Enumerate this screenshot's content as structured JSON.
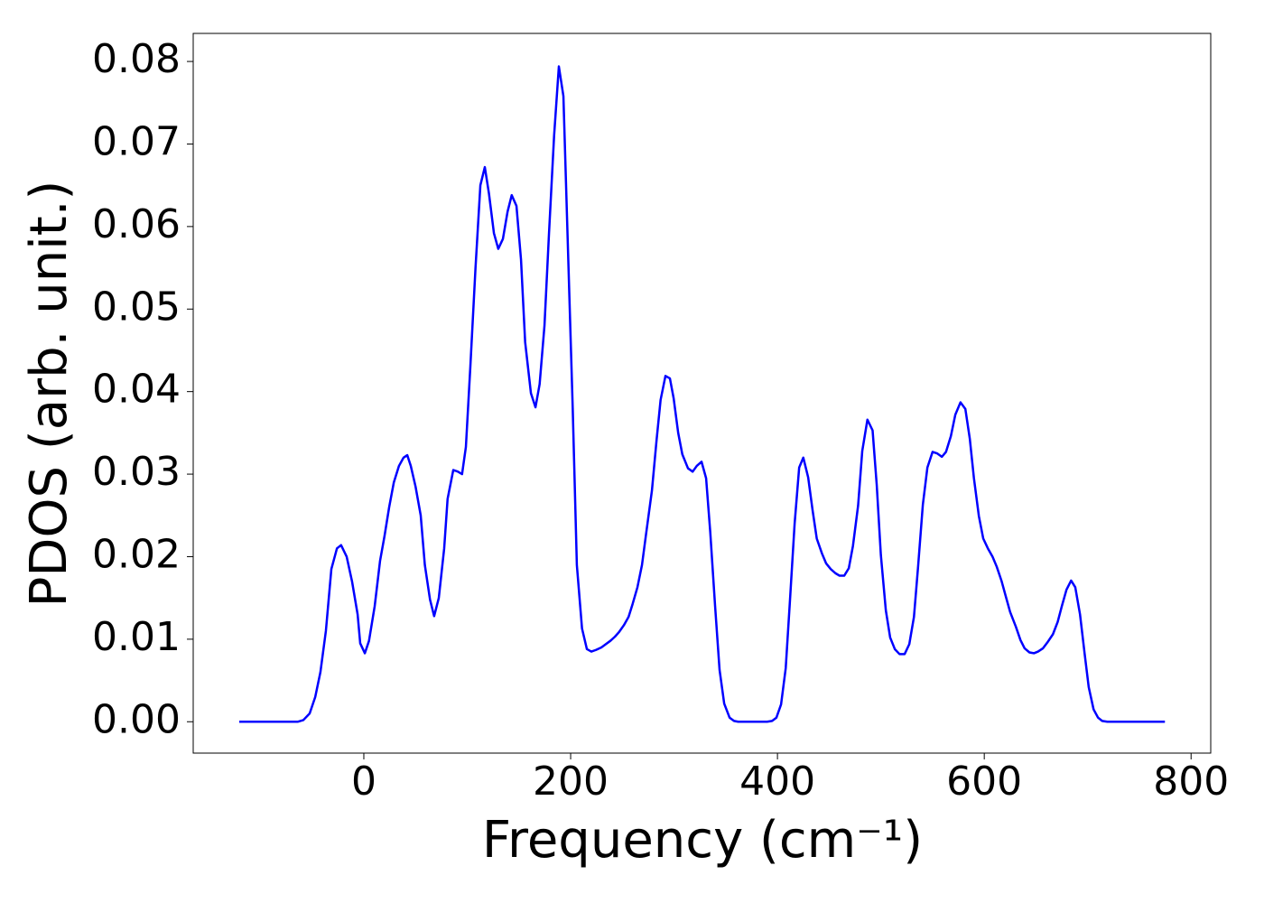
{
  "chart_data": {
    "type": "line",
    "x_label": "Frequency (cm⁻¹)",
    "y_label": "PDOS (arb. unit.)",
    "xlim": [
      -165,
      819
    ],
    "ylim": [
      -0.0038,
      0.0834
    ],
    "xticks": [
      0,
      200,
      400,
      600,
      800
    ],
    "yticks": [
      {
        "value": 0,
        "label": "0.00"
      },
      {
        "value": 0.01,
        "label": "0.01"
      },
      {
        "value": 0.02,
        "label": "0.02"
      },
      {
        "value": 0.03,
        "label": "0.03"
      },
      {
        "value": 0.04,
        "label": "0.04"
      },
      {
        "value": 0.05,
        "label": "0.05"
      },
      {
        "value": 0.06,
        "label": "0.06"
      },
      {
        "value": 0.07,
        "label": "0.07"
      },
      {
        "value": 0.08,
        "label": "0.08"
      }
    ],
    "x": [
      -120.5,
      -100,
      -80,
      -64,
      -58.5,
      -52.4,
      -47,
      -42,
      -36.7,
      -31.4,
      -26,
      -22,
      -16.6,
      -11.4,
      -6,
      -3.5,
      1,
      5,
      10.5,
      15.7,
      20,
      24.5,
      29,
      34,
      38.4,
      42,
      45.4,
      50,
      55,
      59,
      64,
      68,
      72.5,
      77.7,
      81,
      86.5,
      91,
      95,
      98.7,
      103,
      108,
      112.7,
      117,
      121,
      125.8,
      130,
      134.5,
      139,
      143,
      147.6,
      152,
      156,
      161.6,
      166,
      170,
      174.7,
      179,
      184,
      188.6,
      193,
      197,
      202,
      206,
      211,
      215.7,
      220,
      224.5,
      229.7,
      234,
      238.4,
      242.8,
      247,
      251.5,
      256,
      260,
      264.6,
      269,
      273,
      278.6,
      283,
      287,
      291.7,
      296,
      299.6,
      304,
      308,
      313.5,
      318,
      322,
      326.6,
      331,
      335,
      339.7,
      344,
      348.5,
      353.7,
      358,
      362,
      376,
      390,
      394.8,
      399,
      403.5,
      408,
      412,
      416.6,
      421,
      425,
      429.7,
      434,
      438,
      443,
      447,
      451.5,
      456,
      460,
      464.6,
      469,
      473,
      478,
      482,
      487,
      492,
      496,
      500,
      504.8,
      509,
      513.5,
      518,
      523,
      527.5,
      532,
      536,
      540.6,
      545,
      550,
      554.6,
      559,
      563,
      567.7,
      572,
      577,
      581.7,
      586,
      590,
      594.8,
      599,
      603.5,
      608,
      612,
      616.6,
      621,
      625,
      630.6,
      635,
      639,
      643.7,
      648,
      652,
      656.8,
      661,
      666.4,
      671,
      675,
      679.5,
      684,
      688,
      692.6,
      697,
      701,
      705.7,
      710,
      714,
      719,
      740,
      760,
      774.7
    ],
    "series": [
      {
        "name": "PDOS",
        "color": "#0000ff",
        "values": [
          0,
          0,
          0,
          0,
          0.0002,
          0.001,
          0.003,
          0.006,
          0.011,
          0.0185,
          0.021,
          0.0214,
          0.02,
          0.017,
          0.013,
          0.0095,
          0.0083,
          0.0098,
          0.014,
          0.0195,
          0.0225,
          0.026,
          0.029,
          0.031,
          0.032,
          0.0323,
          0.031,
          0.0285,
          0.025,
          0.019,
          0.0148,
          0.0128,
          0.015,
          0.021,
          0.027,
          0.0305,
          0.0303,
          0.03,
          0.0333,
          0.043,
          0.055,
          0.065,
          0.0672,
          0.064,
          0.0592,
          0.0573,
          0.0585,
          0.0618,
          0.0638,
          0.0625,
          0.056,
          0.046,
          0.0398,
          0.0381,
          0.0409,
          0.048,
          0.059,
          0.071,
          0.0794,
          0.0758,
          0.059,
          0.038,
          0.019,
          0.0113,
          0.0088,
          0.0085,
          0.0087,
          0.009,
          0.0094,
          0.0098,
          0.0103,
          0.0109,
          0.0117,
          0.0127,
          0.0143,
          0.0163,
          0.019,
          0.0228,
          0.028,
          0.034,
          0.039,
          0.0419,
          0.0416,
          0.0392,
          0.035,
          0.0324,
          0.0307,
          0.0303,
          0.031,
          0.0315,
          0.0295,
          0.023,
          0.014,
          0.0063,
          0.0022,
          0.0005,
          0.0001,
          0,
          0,
          0,
          0.0001,
          0.0005,
          0.0021,
          0.0065,
          0.0145,
          0.024,
          0.0308,
          0.032,
          0.0296,
          0.0256,
          0.0222,
          0.0204,
          0.0192,
          0.0185,
          0.018,
          0.0177,
          0.0177,
          0.0186,
          0.0213,
          0.0262,
          0.0328,
          0.0366,
          0.0353,
          0.0287,
          0.0202,
          0.0135,
          0.0102,
          0.0088,
          0.0082,
          0.0082,
          0.0094,
          0.0127,
          0.0188,
          0.0263,
          0.0308,
          0.0327,
          0.0325,
          0.0321,
          0.0327,
          0.0346,
          0.0372,
          0.0387,
          0.0379,
          0.0343,
          0.0295,
          0.0249,
          0.0222,
          0.021,
          0.02,
          0.0188,
          0.0171,
          0.0151,
          0.0133,
          0.0115,
          0.0099,
          0.0089,
          0.0084,
          0.0083,
          0.0085,
          0.0089,
          0.0096,
          0.0106,
          0.0121,
          0.014,
          0.016,
          0.0171,
          0.0163,
          0.013,
          0.0083,
          0.0042,
          0.0015,
          0.0005,
          0.0001,
          0,
          0,
          0,
          0
        ]
      }
    ]
  }
}
